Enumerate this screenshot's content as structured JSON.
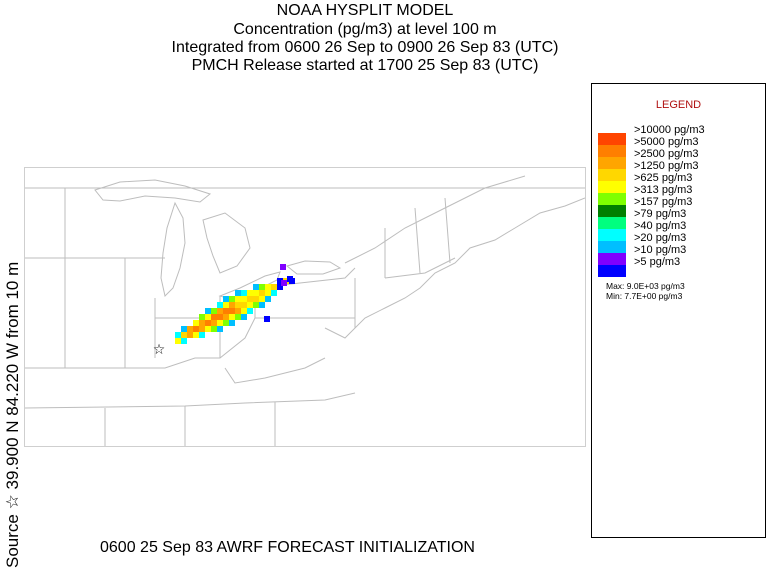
{
  "header": {
    "line1": "NOAA HYSPLIT MODEL",
    "line2": "Concentration  (pg/m3) at level   100 m",
    "line3": "Integrated from 0600 26 Sep to 0900 26 Sep 83 (UTC)",
    "line4": "PMCH Release started at 1700 25 Sep 83 (UTC)"
  },
  "side_label": "Source ☆ 39.900  N  84.220  W      from   10 m",
  "footer": "0600 25 Sep 83 AWRF FORECAST INITIALIZATION",
  "legend": {
    "title": "LEGEND",
    "items": [
      {
        "label": ">10000 pg/m3",
        "color": "#ff4500"
      },
      {
        "label": ">5000 pg/m3",
        "color": "#ff7f00"
      },
      {
        "label": ">2500 pg/m3",
        "color": "#ffa500"
      },
      {
        "label": ">1250 pg/m3",
        "color": "#ffd700"
      },
      {
        "label": ">625 pg/m3",
        "color": "#ffff00"
      },
      {
        "label": ">313 pg/m3",
        "color": "#7fff00"
      },
      {
        "label": ">157 pg/m3",
        "color": "#007f00"
      },
      {
        "label": ">79 pg/m3",
        "color": "#00ff7f"
      },
      {
        "label": ">40 pg/m3",
        "color": "#00ffff"
      },
      {
        "label": ">20 pg/m3",
        "color": "#00bfff"
      },
      {
        "label": ">10 pg/m3",
        "color": "#8000ff"
      },
      {
        "label": ">5 pg/m3",
        "color": "#0000ff"
      }
    ],
    "max": "Max: 9.0E+03 pg/m3",
    "min": "Min: 7.7E+00 pg/m3"
  }
}
